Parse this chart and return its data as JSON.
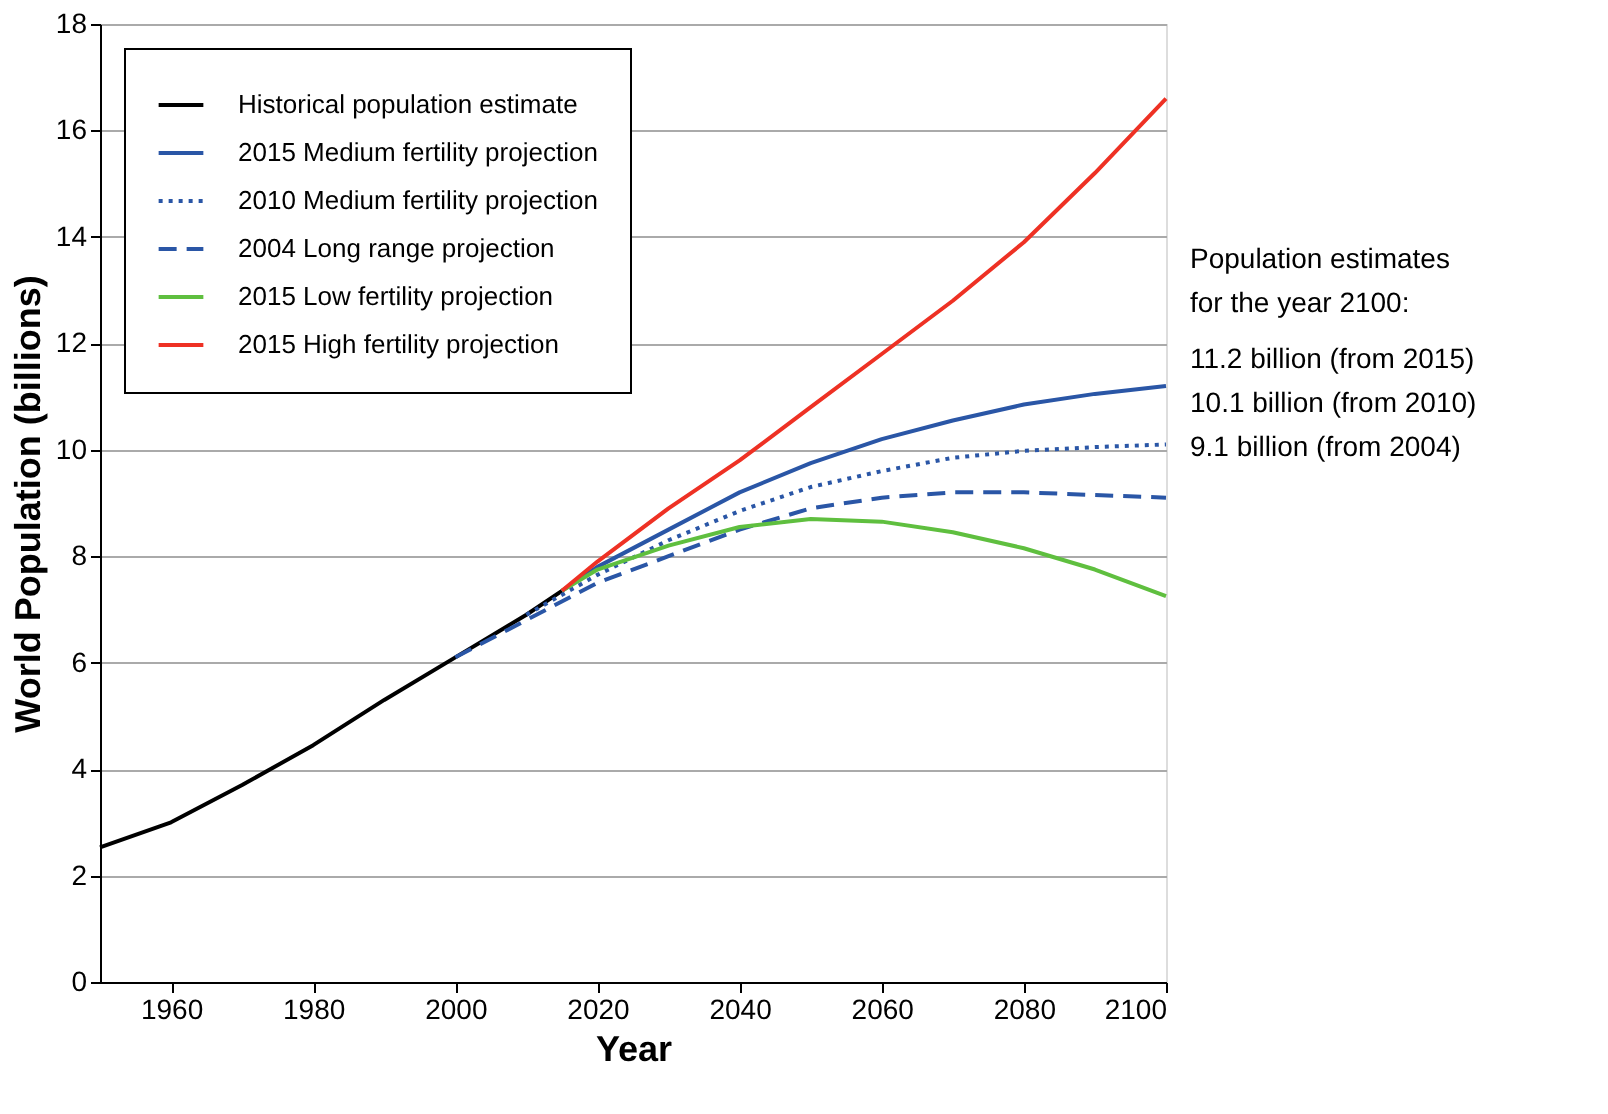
{
  "chart_data": {
    "type": "line",
    "xlabel": "Year",
    "ylabel": "World Population (billions)",
    "xlim": [
      1950,
      2100
    ],
    "xticks": [
      1960,
      1980,
      2000,
      2020,
      2040,
      2060,
      2080,
      2100
    ],
    "ylim": [
      0,
      18
    ],
    "yticks": [
      0,
      2,
      4,
      6,
      8,
      10,
      12,
      14,
      16,
      18
    ],
    "grid": "y",
    "legend": "top left",
    "series": [
      {
        "name": "Historical population estimate",
        "color": "#000000",
        "line_style": "solid",
        "x": [
          1950,
          1960,
          1970,
          1980,
          1990,
          2000,
          2010,
          2015
        ],
        "values": [
          2.53,
          3.0,
          3.7,
          4.45,
          5.3,
          6.1,
          6.9,
          7.35
        ]
      },
      {
        "name": "2015 Medium fertility projection",
        "color": "#2a56a6",
        "line_style": "solid",
        "x": [
          2015,
          2020,
          2030,
          2040,
          2050,
          2060,
          2070,
          2080,
          2090,
          2100
        ],
        "values": [
          7.35,
          7.8,
          8.5,
          9.2,
          9.75,
          10.2,
          10.55,
          10.85,
          11.05,
          11.2
        ]
      },
      {
        "name": "2010 Medium fertility projection",
        "color": "#2a56a6",
        "line_style": "dotted",
        "x": [
          2010,
          2020,
          2030,
          2040,
          2050,
          2060,
          2070,
          2080,
          2090,
          2100
        ],
        "values": [
          6.9,
          7.65,
          8.3,
          8.85,
          9.3,
          9.6,
          9.85,
          9.98,
          10.05,
          10.1
        ]
      },
      {
        "name": "2004 Long range projection",
        "color": "#2a56a6",
        "line_style": "dashed",
        "x": [
          2000,
          2010,
          2020,
          2030,
          2040,
          2050,
          2060,
          2070,
          2080,
          2090,
          2100
        ],
        "values": [
          6.1,
          6.8,
          7.5,
          8.0,
          8.5,
          8.9,
          9.1,
          9.2,
          9.2,
          9.15,
          9.1
        ]
      },
      {
        "name": "2015 Low fertility projection",
        "color": "#5fbf3f",
        "line_style": "solid",
        "x": [
          2015,
          2020,
          2030,
          2040,
          2050,
          2060,
          2070,
          2080,
          2090,
          2100
        ],
        "values": [
          7.35,
          7.75,
          8.2,
          8.55,
          8.7,
          8.65,
          8.45,
          8.15,
          7.75,
          7.25
        ]
      },
      {
        "name": "2015 High fertility projection",
        "color": "#ee3124",
        "line_style": "solid",
        "x": [
          2015,
          2020,
          2030,
          2040,
          2050,
          2060,
          2070,
          2080,
          2090,
          2100
        ],
        "values": [
          7.35,
          7.9,
          8.9,
          9.8,
          10.8,
          11.8,
          12.8,
          13.9,
          15.2,
          16.6
        ]
      }
    ],
    "annotations": [
      "Population estimates",
      "for the year 2100:",
      "11.2 billion (from 2015)",
      "10.1 billion (from 2010)",
      "9.1 billion (from 2004)"
    ]
  }
}
